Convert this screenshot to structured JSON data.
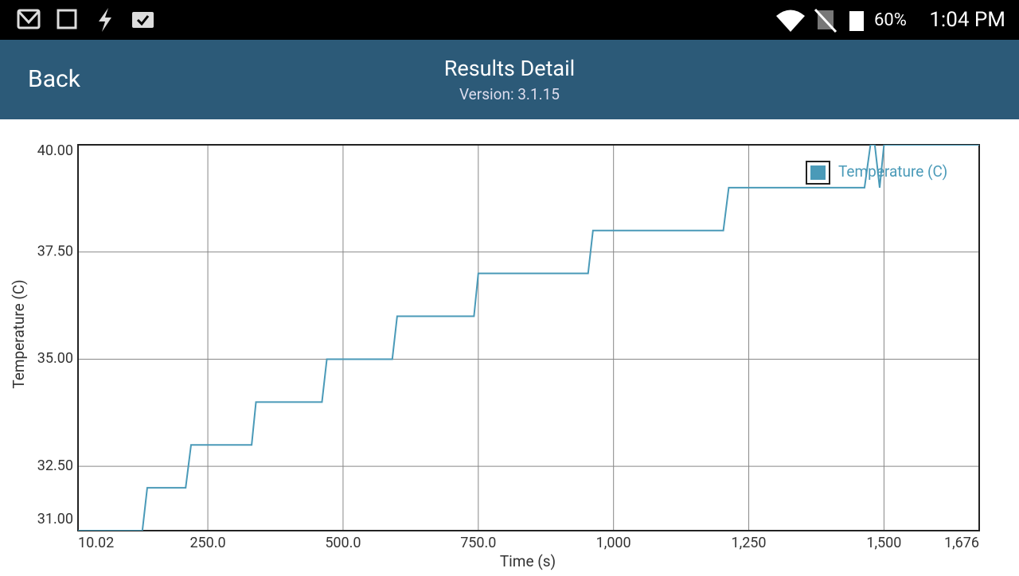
{
  "status_bar": {
    "battery": "60%",
    "time": "1:04 PM"
  },
  "header": {
    "back": "Back",
    "title": "Results Detail",
    "subtitle": "Version: 3.1.15"
  },
  "chart_data": {
    "type": "line",
    "x_label": "Time (s)",
    "y_label": "Temperature (C)",
    "x": [
      10.02,
      129,
      138,
      209,
      219,
      331,
      339,
      461,
      470,
      591,
      600,
      742,
      750,
      953,
      962,
      1203,
      1213,
      1464,
      1475,
      1483,
      1492,
      1500,
      1676
    ],
    "series": [
      {
        "name": "Temperature (C)",
        "color": "#4a9ab8",
        "values": [
          31,
          31,
          32,
          32,
          33,
          33,
          34,
          34,
          35,
          35,
          36,
          36,
          37,
          37,
          38,
          38,
          39,
          39,
          40,
          40,
          39,
          40,
          40
        ]
      }
    ],
    "xlim": [
      10.02,
      1676
    ],
    "ylim": [
      31,
      40
    ],
    "xticks": [
      10.02,
      {
        "value": 250,
        "label": "250.0"
      },
      {
        "value": 500,
        "label": "500.0"
      },
      {
        "value": 750,
        "label": "750.0"
      },
      {
        "value": 1000,
        "label": "1,000"
      },
      {
        "value": 1250,
        "label": "1,250"
      },
      {
        "value": 1500,
        "label": "1,500"
      },
      {
        "value": 1676,
        "label": "1,676"
      }
    ],
    "yticks": [
      {
        "value": 31,
        "label": "31.00"
      },
      {
        "value": 32.5,
        "label": "32.50"
      },
      {
        "value": 35,
        "label": "35.00"
      },
      {
        "value": 37.5,
        "label": "37.50"
      },
      {
        "value": 40,
        "label": "40.00"
      }
    ],
    "grid": true,
    "legend": "top-right"
  }
}
